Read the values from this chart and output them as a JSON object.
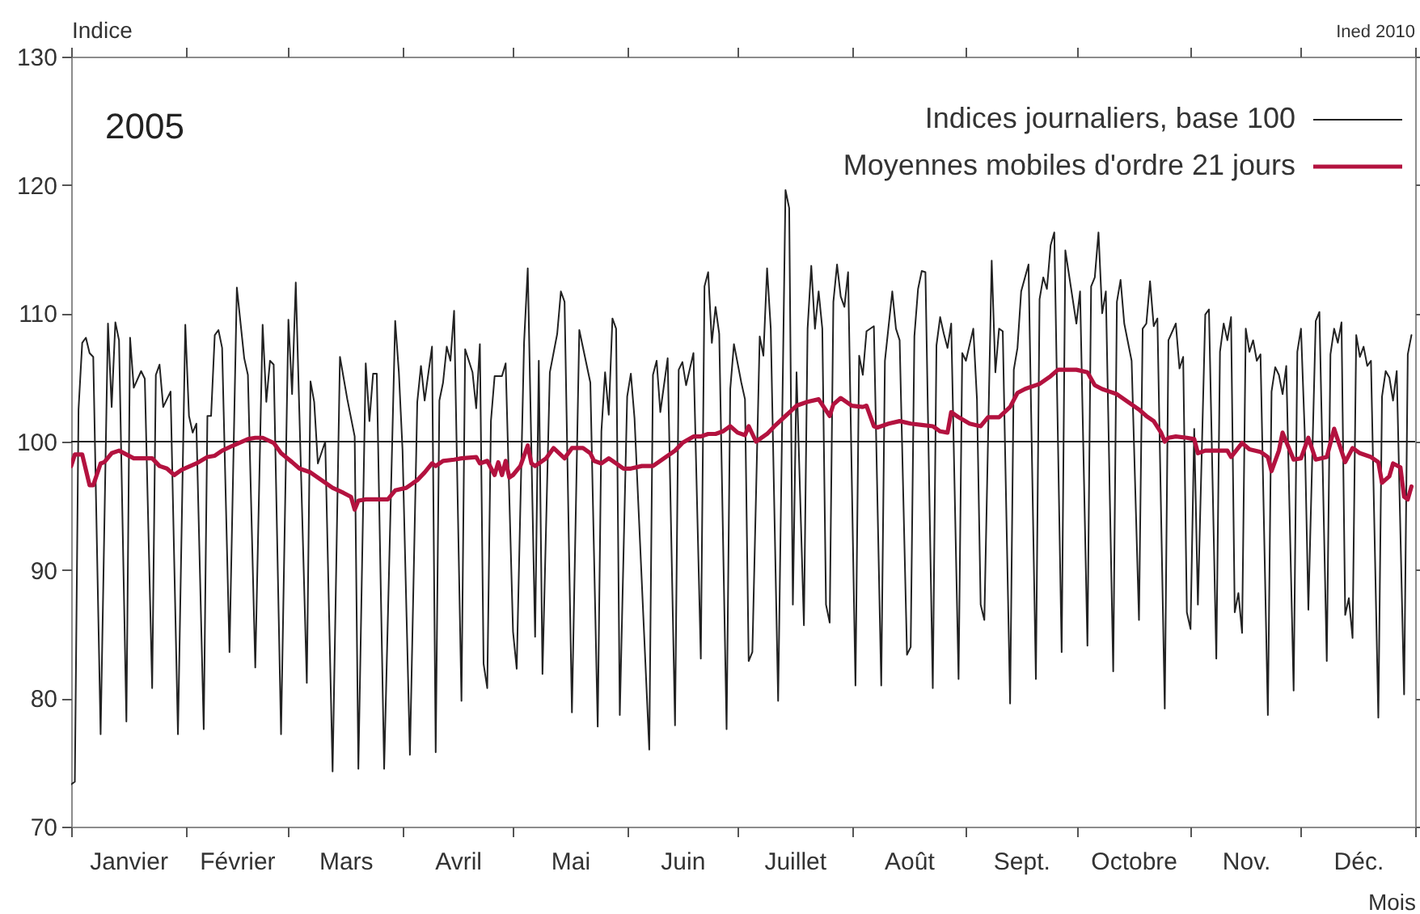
{
  "chart_data": {
    "type": "line",
    "title": "2005",
    "xlabel": "Mois",
    "ylabel": "Indice",
    "annotations": [
      "Ined 2010"
    ],
    "xlim": [
      "2005-01-01",
      "2006-01-01"
    ],
    "ylim": [
      70,
      130
    ],
    "xticks": [
      {
        "value": "2005-01-01",
        "label": null
      },
      {
        "value": "2005-01-16T12:00",
        "label": "Janvier"
      },
      {
        "value": "2005-02-01",
        "label": null
      },
      {
        "value": "2005-02-15",
        "label": "Février"
      },
      {
        "value": "2005-03-01",
        "label": null
      },
      {
        "value": "2005-03-16T12:00",
        "label": "Mars"
      },
      {
        "value": "2005-04-01",
        "label": null
      },
      {
        "value": "2005-04-16",
        "label": "Avril"
      },
      {
        "value": "2005-05-01",
        "label": null
      },
      {
        "value": "2005-05-16T12:00",
        "label": "Mai"
      },
      {
        "value": "2005-06-01",
        "label": null
      },
      {
        "value": "2005-06-16",
        "label": "Juin"
      },
      {
        "value": "2005-07-01",
        "label": null
      },
      {
        "value": "2005-07-16T12:00",
        "label": "Juillet"
      },
      {
        "value": "2005-08-01",
        "label": null
      },
      {
        "value": "2005-08-16T12:00",
        "label": "Août"
      },
      {
        "value": "2005-09-01",
        "label": null
      },
      {
        "value": "2005-09-16",
        "label": "Sept."
      },
      {
        "value": "2005-10-01",
        "label": null
      },
      {
        "value": "2005-10-16T12:00",
        "label": "Octobre"
      },
      {
        "value": "2005-11-01",
        "label": null
      },
      {
        "value": "2005-11-16",
        "label": "Nov."
      },
      {
        "value": "2005-12-01",
        "label": null
      },
      {
        "value": "2005-12-16T12:00",
        "label": "Déc."
      },
      {
        "value": "2006-01-01",
        "label": null
      }
    ],
    "yticks": [
      70,
      80,
      90,
      100,
      110,
      120,
      130
    ],
    "ref_lines": [
      {
        "axis": "y",
        "value": 100,
        "color": "#222222"
      }
    ],
    "legend": "top right",
    "series": [
      {
        "name": "Indices journaliers, base 100",
        "color": "#222222",
        "x": [
          "2005-01-01",
          "2005-01-02",
          "2005-01-03",
          "2005-01-04",
          "2005-01-05",
          "2005-01-06",
          "2005-01-07",
          "2005-01-09",
          "2005-01-11",
          "2005-01-12",
          "2005-01-13",
          "2005-01-14",
          "2005-01-16",
          "2005-01-17",
          "2005-01-18",
          "2005-01-20",
          "2005-01-21",
          "2005-01-23",
          "2005-01-24",
          "2005-01-25",
          "2005-01-26",
          "2005-01-28",
          "2005-01-30",
          "2005-02-01",
          "2005-02-02",
          "2005-02-03",
          "2005-02-04",
          "2005-02-06",
          "2005-02-07",
          "2005-02-08",
          "2005-02-09",
          "2005-02-10",
          "2005-02-11",
          "2005-02-13",
          "2005-02-15",
          "2005-02-17",
          "2005-02-18",
          "2005-02-20",
          "2005-02-22",
          "2005-02-23",
          "2005-02-24",
          "2005-02-25",
          "2005-02-27",
          "2005-03-01",
          "2005-03-02",
          "2005-03-03",
          "2005-03-06",
          "2005-03-07",
          "2005-03-08",
          "2005-03-09",
          "2005-03-11",
          "2005-03-13",
          "2005-03-15",
          "2005-03-17",
          "2005-03-19",
          "2005-03-20",
          "2005-03-22",
          "2005-03-23",
          "2005-03-24",
          "2005-03-25",
          "2005-03-27",
          "2005-03-30",
          "2005-03-31",
          "2005-04-01",
          "2005-04-03",
          "2005-04-05",
          "2005-04-06",
          "2005-04-07",
          "2005-04-09",
          "2005-04-10",
          "2005-04-11",
          "2005-04-12",
          "2005-04-13",
          "2005-04-14",
          "2005-04-15",
          "2005-04-17",
          "2005-04-18",
          "2005-04-20",
          "2005-04-21",
          "2005-04-22",
          "2005-04-23",
          "2005-04-24",
          "2005-04-25",
          "2005-04-26",
          "2005-04-28",
          "2005-04-29",
          "2005-05-01",
          "2005-05-02",
          "2005-05-04",
          "2005-05-05",
          "2005-05-07",
          "2005-05-08",
          "2005-05-09",
          "2005-05-11",
          "2005-05-13",
          "2005-05-14",
          "2005-05-15",
          "2005-05-17",
          "2005-05-19",
          "2005-05-22",
          "2005-05-24",
          "2005-05-25",
          "2005-05-26",
          "2005-05-27",
          "2005-05-28",
          "2005-05-29",
          "2005-05-30",
          "2005-06-01",
          "2005-06-02",
          "2005-06-03",
          "2005-06-07",
          "2005-06-08",
          "2005-06-09",
          "2005-06-10",
          "2005-06-12",
          "2005-06-14",
          "2005-06-15",
          "2005-06-16",
          "2005-06-17",
          "2005-06-19",
          "2005-06-21",
          "2005-06-22",
          "2005-06-23",
          "2005-06-24",
          "2005-06-25",
          "2005-06-26",
          "2005-06-28",
          "2005-06-29",
          "2005-06-30",
          "2005-07-02",
          "2005-07-03",
          "2005-07-04",
          "2005-07-05",
          "2005-07-07",
          "2005-07-08",
          "2005-07-09",
          "2005-07-10",
          "2005-07-12",
          "2005-07-14",
          "2005-07-15",
          "2005-07-16",
          "2005-07-17",
          "2005-07-19",
          "2005-07-20",
          "2005-07-21",
          "2005-07-22",
          "2005-07-23",
          "2005-07-24",
          "2005-07-25",
          "2005-07-26",
          "2005-07-27",
          "2005-07-28",
          "2005-07-29",
          "2005-07-30",
          "2005-07-31",
          "2005-08-02",
          "2005-08-03",
          "2005-08-04",
          "2005-08-05",
          "2005-08-07",
          "2005-08-09",
          "2005-08-10",
          "2005-08-12",
          "2005-08-13",
          "2005-08-14",
          "2005-08-16",
          "2005-08-17",
          "2005-08-18",
          "2005-08-19",
          "2005-08-20",
          "2005-08-21",
          "2005-08-23",
          "2005-08-24",
          "2005-08-25",
          "2005-08-26",
          "2005-08-27",
          "2005-08-28",
          "2005-08-30",
          "2005-08-31",
          "2005-09-01",
          "2005-09-03",
          "2005-09-04",
          "2005-09-05",
          "2005-09-06",
          "2005-09-08",
          "2005-09-09",
          "2005-09-10",
          "2005-09-11",
          "2005-09-13",
          "2005-09-14",
          "2005-09-15",
          "2005-09-16",
          "2005-09-18",
          "2005-09-20",
          "2005-09-21",
          "2005-09-22",
          "2005-09-23",
          "2005-09-24",
          "2005-09-25",
          "2005-09-27",
          "2005-09-28",
          "2005-09-29",
          "2005-09-30",
          "2005-10-01",
          "2005-10-02",
          "2005-10-04",
          "2005-10-05",
          "2005-10-06",
          "2005-10-07",
          "2005-10-08",
          "2005-10-09",
          "2005-10-11",
          "2005-10-12",
          "2005-10-13",
          "2005-10-14",
          "2005-10-16",
          "2005-10-18",
          "2005-10-19",
          "2005-10-20",
          "2005-10-21",
          "2005-10-22",
          "2005-10-23",
          "2005-10-25",
          "2005-10-26",
          "2005-10-28",
          "2005-10-29",
          "2005-10-30",
          "2005-10-31",
          "2005-11-01",
          "2005-11-02",
          "2005-11-03",
          "2005-11-05",
          "2005-11-06",
          "2005-11-08",
          "2005-11-09",
          "2005-11-10",
          "2005-11-11",
          "2005-11-12",
          "2005-11-13",
          "2005-11-14",
          "2005-11-15",
          "2005-11-16",
          "2005-11-17",
          "2005-11-18",
          "2005-11-19",
          "2005-11-20",
          "2005-11-22",
          "2005-11-23",
          "2005-11-24",
          "2005-11-25",
          "2005-11-26",
          "2005-11-27",
          "2005-11-29",
          "2005-11-30",
          "2005-12-01",
          "2005-12-02",
          "2005-12-03",
          "2005-12-05",
          "2005-12-06",
          "2005-12-08",
          "2005-12-09",
          "2005-12-10",
          "2005-12-11",
          "2005-12-12",
          "2005-12-13",
          "2005-12-14",
          "2005-12-15",
          "2005-12-16",
          "2005-12-17",
          "2005-12-18",
          "2005-12-19",
          "2005-12-20",
          "2005-12-22",
          "2005-12-23",
          "2005-12-24",
          "2005-12-25",
          "2005-12-26",
          "2005-12-27",
          "2005-12-29",
          "2005-12-30",
          "2005-12-31"
        ],
        "values": [
          73.3,
          73.5,
          102.5,
          107.7,
          108.1,
          106.9,
          106.6,
          77.2,
          109.2,
          102.7,
          109.3,
          107.9,
          78.2,
          108.1,
          104.2,
          105.5,
          104.9,
          80.8,
          105.2,
          106.0,
          102.7,
          103.9,
          77.2,
          109.1,
          102.0,
          100.7,
          101.4,
          77.6,
          102.0,
          102.0,
          108.3,
          108.7,
          107.3,
          83.6,
          112.0,
          106.5,
          105.2,
          82.4,
          109.1,
          103.1,
          106.3,
          106.0,
          77.2,
          109.5,
          103.7,
          112.4,
          81.2,
          104.7,
          103.1,
          98.3,
          100.0,
          74.3,
          106.6,
          103.3,
          100.4,
          74.5,
          106.1,
          101.6,
          105.3,
          105.3,
          74.5,
          109.4,
          105.4,
          99.3,
          75.6,
          103.1,
          105.9,
          103.2,
          107.4,
          75.8,
          103.2,
          104.6,
          107.4,
          106.3,
          110.2,
          79.8,
          107.2,
          105.4,
          102.6,
          107.6,
          82.7,
          80.8,
          101.6,
          105.1,
          105.1,
          106.1,
          85.2,
          82.3,
          107.7,
          113.5,
          84.8,
          106.3,
          81.9,
          105.4,
          108.4,
          111.7,
          110.9,
          78.9,
          108.7,
          104.6,
          77.8,
          100.8,
          105.4,
          102.1,
          109.6,
          108.8,
          78.7,
          103.5,
          105.3,
          101.8,
          76.0,
          105.2,
          106.3,
          102.3,
          106.5,
          77.9,
          105.6,
          106.2,
          104.4,
          106.9,
          83.1,
          112.1,
          113.2,
          107.7,
          110.5,
          108.4,
          77.6,
          104.1,
          107.6,
          104.6,
          103.3,
          82.9,
          83.6,
          108.2,
          106.7,
          113.5,
          108.8,
          79.8,
          119.6,
          118.2,
          87.3,
          105.4,
          85.7,
          108.8,
          113.7,
          108.8,
          111.7,
          108.8,
          87.3,
          85.9,
          110.9,
          113.8,
          111.3,
          110.5,
          113.2,
          81.0,
          106.7,
          105.2,
          108.6,
          109.0,
          81.0,
          106.3,
          111.7,
          108.8,
          107.9,
          83.4,
          84.0,
          108.2,
          111.9,
          113.3,
          113.2,
          80.8,
          107.5,
          109.7,
          108.4,
          107.3,
          109.2,
          81.5,
          106.9,
          106.3,
          108.8,
          103.3,
          87.3,
          86.1,
          114.1,
          105.4,
          108.8,
          108.6,
          79.6,
          105.6,
          107.3,
          111.7,
          113.8,
          81.5,
          111.1,
          112.8,
          111.9,
          115.3,
          116.3,
          83.6,
          114.9,
          113.0,
          111.1,
          109.2,
          111.7,
          84.1,
          112.1,
          112.8,
          116.3,
          110.0,
          111.7,
          82.1,
          110.9,
          112.6,
          109.2,
          106.3,
          86.1,
          108.8,
          109.2,
          112.5,
          109.0,
          109.6,
          79.2,
          107.9,
          109.2,
          105.7,
          106.6,
          86.7,
          85.4,
          101.0,
          87.3,
          109.9,
          110.3,
          83.1,
          107.0,
          109.2,
          107.9,
          109.7,
          86.7,
          88.2,
          85.1,
          108.8,
          107.0,
          107.9,
          106.3,
          106.8,
          78.7,
          103.9,
          105.8,
          105.2,
          103.7,
          105.9,
          80.6,
          107.0,
          108.8,
          100.8,
          86.9,
          109.4,
          110.1,
          82.9,
          106.8,
          108.8,
          107.7,
          109.3,
          86.5,
          87.8,
          84.7,
          108.3,
          106.6,
          107.4,
          105.9,
          106.3,
          78.5,
          103.5,
          105.5,
          105.0,
          103.2,
          105.5,
          80.3,
          106.8,
          108.3
        ]
      },
      {
        "name": "Moyennes mobiles d'ordre 21 jours",
        "color": "#b3123f",
        "x": [
          "2005-01-01",
          "2005-01-02",
          "2005-01-04",
          "2005-01-06",
          "2005-01-07",
          "2005-01-09",
          "2005-01-10",
          "2005-01-12",
          "2005-01-14",
          "2005-01-18",
          "2005-01-23",
          "2005-01-25",
          "2005-01-27",
          "2005-01-29",
          "2005-01-31",
          "2005-02-04",
          "2005-02-07",
          "2005-02-09",
          "2005-02-11",
          "2005-02-14",
          "2005-02-18",
          "2005-02-20",
          "2005-02-22",
          "2005-02-25",
          "2005-02-27",
          "2005-03-02",
          "2005-03-04",
          "2005-03-07",
          "2005-03-10",
          "2005-03-13",
          "2005-03-16",
          "2005-03-18",
          "2005-03-19",
          "2005-03-20",
          "2005-03-22",
          "2005-03-25",
          "2005-03-28",
          "2005-03-30",
          "2005-04-02",
          "2005-04-05",
          "2005-04-07",
          "2005-04-09",
          "2005-04-10",
          "2005-04-12",
          "2005-04-15",
          "2005-04-17",
          "2005-04-21",
          "2005-04-22",
          "2005-04-24",
          "2005-04-26",
          "2005-04-27",
          "2005-04-28",
          "2005-04-29",
          "2005-04-30",
          "2005-05-01",
          "2005-05-03",
          "2005-05-05",
          "2005-05-06",
          "2005-05-07",
          "2005-05-10",
          "2005-05-12",
          "2005-05-15",
          "2005-05-17",
          "2005-05-20",
          "2005-05-22",
          "2005-05-23",
          "2005-05-25",
          "2005-05-27",
          "2005-05-29",
          "2005-05-31",
          "2005-06-02",
          "2005-06-05",
          "2005-06-08",
          "2005-06-11",
          "2005-06-14",
          "2005-06-16",
          "2005-06-19",
          "2005-06-21",
          "2005-06-23",
          "2005-06-25",
          "2005-06-27",
          "2005-06-28",
          "2005-06-29",
          "2005-07-01",
          "2005-07-03",
          "2005-07-04",
          "2005-07-06",
          "2005-07-09",
          "2005-07-11",
          "2005-07-14",
          "2005-07-17",
          "2005-07-20",
          "2005-07-23",
          "2005-07-26",
          "2005-07-27",
          "2005-07-29",
          "2005-07-31",
          "2005-08-01",
          "2005-08-04",
          "2005-08-05",
          "2005-08-07",
          "2005-08-08",
          "2005-08-11",
          "2005-08-14",
          "2005-08-17",
          "2005-08-20",
          "2005-08-23",
          "2005-08-25",
          "2005-08-27",
          "2005-08-28",
          "2005-08-30",
          "2005-09-02",
          "2005-09-05",
          "2005-09-07",
          "2005-09-10",
          "2005-09-13",
          "2005-09-15",
          "2005-09-17",
          "2005-09-21",
          "2005-09-24",
          "2005-09-26",
          "2005-09-28",
          "2005-10-01",
          "2005-10-04",
          "2005-10-06",
          "2005-10-08",
          "2005-10-10",
          "2005-10-12",
          "2005-10-15",
          "2005-10-18",
          "2005-10-20",
          "2005-10-22",
          "2005-10-24",
          "2005-10-25",
          "2005-10-26",
          "2005-10-28",
          "2005-10-31",
          "2005-11-02",
          "2005-11-03",
          "2005-11-05",
          "2005-11-08",
          "2005-11-11",
          "2005-11-12",
          "2005-11-15",
          "2005-11-17",
          "2005-11-20",
          "2005-11-22",
          "2005-11-23",
          "2005-11-25",
          "2005-11-26",
          "2005-11-29",
          "2005-12-01",
          "2005-12-03",
          "2005-12-05",
          "2005-12-08",
          "2005-12-10",
          "2005-12-13",
          "2005-12-15",
          "2005-12-17",
          "2005-12-20",
          "2005-12-22",
          "2005-12-23",
          "2005-12-25",
          "2005-12-26",
          "2005-12-28",
          "2005-12-29",
          "2005-12-30",
          "2005-12-31"
        ],
        "values": [
          98.1,
          99.0,
          99.0,
          96.6,
          96.6,
          98.3,
          98.4,
          99.1,
          99.3,
          98.7,
          98.7,
          98.1,
          97.9,
          97.4,
          97.8,
          98.3,
          98.8,
          98.9,
          99.3,
          99.7,
          100.2,
          100.3,
          100.3,
          99.9,
          99.1,
          98.4,
          97.9,
          97.6,
          97.0,
          96.4,
          96.0,
          95.7,
          94.7,
          95.4,
          95.5,
          95.5,
          95.5,
          96.2,
          96.4,
          97.0,
          97.6,
          98.3,
          98.1,
          98.5,
          98.6,
          98.7,
          98.8,
          98.3,
          98.5,
          97.4,
          98.4,
          97.4,
          98.5,
          97.2,
          97.4,
          98.1,
          99.7,
          98.3,
          98.1,
          98.7,
          99.5,
          98.7,
          99.5,
          99.5,
          99.1,
          98.5,
          98.3,
          98.7,
          98.3,
          97.9,
          97.9,
          98.1,
          98.1,
          98.7,
          99.3,
          99.9,
          100.4,
          100.4,
          100.6,
          100.6,
          100.8,
          101.0,
          101.2,
          100.7,
          100.5,
          101.2,
          100.0,
          100.6,
          101.2,
          102.0,
          102.8,
          103.1,
          103.3,
          102.0,
          102.9,
          103.4,
          103.0,
          102.8,
          102.7,
          102.8,
          101.2,
          101.1,
          101.4,
          101.6,
          101.4,
          101.3,
          101.2,
          100.8,
          100.7,
          102.3,
          101.9,
          101.4,
          101.2,
          101.9,
          101.9,
          102.7,
          103.8,
          104.1,
          104.5,
          105.1,
          105.6,
          105.6,
          105.6,
          105.4,
          104.4,
          104.1,
          103.9,
          103.7,
          103.1,
          102.5,
          102.0,
          101.6,
          100.7,
          100.0,
          100.3,
          100.4,
          100.3,
          100.2,
          99.1,
          99.3,
          99.3,
          99.3,
          98.8,
          99.9,
          99.4,
          99.2,
          98.8,
          97.7,
          99.3,
          100.7,
          98.6,
          98.7,
          100.3,
          98.6,
          98.8,
          101.0,
          98.4,
          99.5,
          99.1,
          98.8,
          98.4,
          96.8,
          97.3,
          98.3,
          98.0,
          95.7,
          95.5,
          96.5
        ]
      }
    ]
  }
}
